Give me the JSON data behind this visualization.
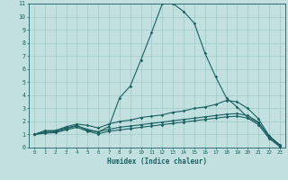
{
  "background_color": "#c2e0e0",
  "grid_color": "#a0c8c8",
  "line_color": "#1a6060",
  "xlabel": "Humidex (Indice chaleur)",
  "xlim": [
    -0.5,
    23.5
  ],
  "ylim": [
    0,
    11
  ],
  "xticks": [
    0,
    1,
    2,
    3,
    4,
    5,
    6,
    7,
    8,
    9,
    10,
    11,
    12,
    13,
    14,
    15,
    16,
    17,
    18,
    19,
    20,
    21,
    22,
    23
  ],
  "yticks": [
    0,
    1,
    2,
    3,
    4,
    5,
    6,
    7,
    8,
    9,
    10,
    11
  ],
  "series": [
    {
      "x": [
        0,
        1,
        2,
        3,
        4,
        5,
        6,
        7,
        8,
        9,
        10,
        11,
        12,
        13,
        14,
        15,
        16,
        17,
        18,
        19,
        20,
        21,
        22,
        23
      ],
      "y": [
        1.0,
        1.3,
        1.3,
        1.5,
        1.7,
        1.3,
        1.2,
        1.6,
        3.8,
        4.7,
        6.7,
        8.8,
        11.0,
        11.0,
        10.4,
        9.5,
        7.2,
        5.4,
        3.8,
        3.1,
        2.3,
        1.9,
        0.9,
        0.2
      ]
    },
    {
      "x": [
        0,
        1,
        2,
        3,
        4,
        5,
        6,
        7,
        8,
        9,
        10,
        11,
        12,
        13,
        14,
        15,
        16,
        17,
        18,
        19,
        20,
        21,
        22,
        23
      ],
      "y": [
        1.0,
        1.2,
        1.3,
        1.6,
        1.8,
        1.7,
        1.5,
        1.8,
        2.0,
        2.1,
        2.3,
        2.4,
        2.5,
        2.7,
        2.8,
        3.0,
        3.1,
        3.3,
        3.6,
        3.5,
        3.0,
        2.2,
        0.9,
        0.2
      ]
    },
    {
      "x": [
        0,
        1,
        2,
        3,
        4,
        5,
        6,
        7,
        8,
        9,
        10,
        11,
        12,
        13,
        14,
        15,
        16,
        17,
        18,
        19,
        20,
        21,
        22,
        23
      ],
      "y": [
        1.0,
        1.15,
        1.2,
        1.45,
        1.65,
        1.4,
        1.2,
        1.4,
        1.55,
        1.65,
        1.75,
        1.85,
        1.95,
        2.05,
        2.15,
        2.25,
        2.35,
        2.45,
        2.55,
        2.6,
        2.45,
        1.95,
        0.8,
        0.12
      ]
    },
    {
      "x": [
        0,
        1,
        2,
        3,
        4,
        5,
        6,
        7,
        8,
        9,
        10,
        11,
        12,
        13,
        14,
        15,
        16,
        17,
        18,
        19,
        20,
        21,
        22,
        23
      ],
      "y": [
        1.0,
        1.1,
        1.15,
        1.35,
        1.55,
        1.25,
        1.05,
        1.25,
        1.35,
        1.45,
        1.55,
        1.65,
        1.75,
        1.85,
        1.95,
        2.05,
        2.15,
        2.25,
        2.35,
        2.4,
        2.25,
        1.75,
        0.7,
        0.08
      ]
    }
  ]
}
